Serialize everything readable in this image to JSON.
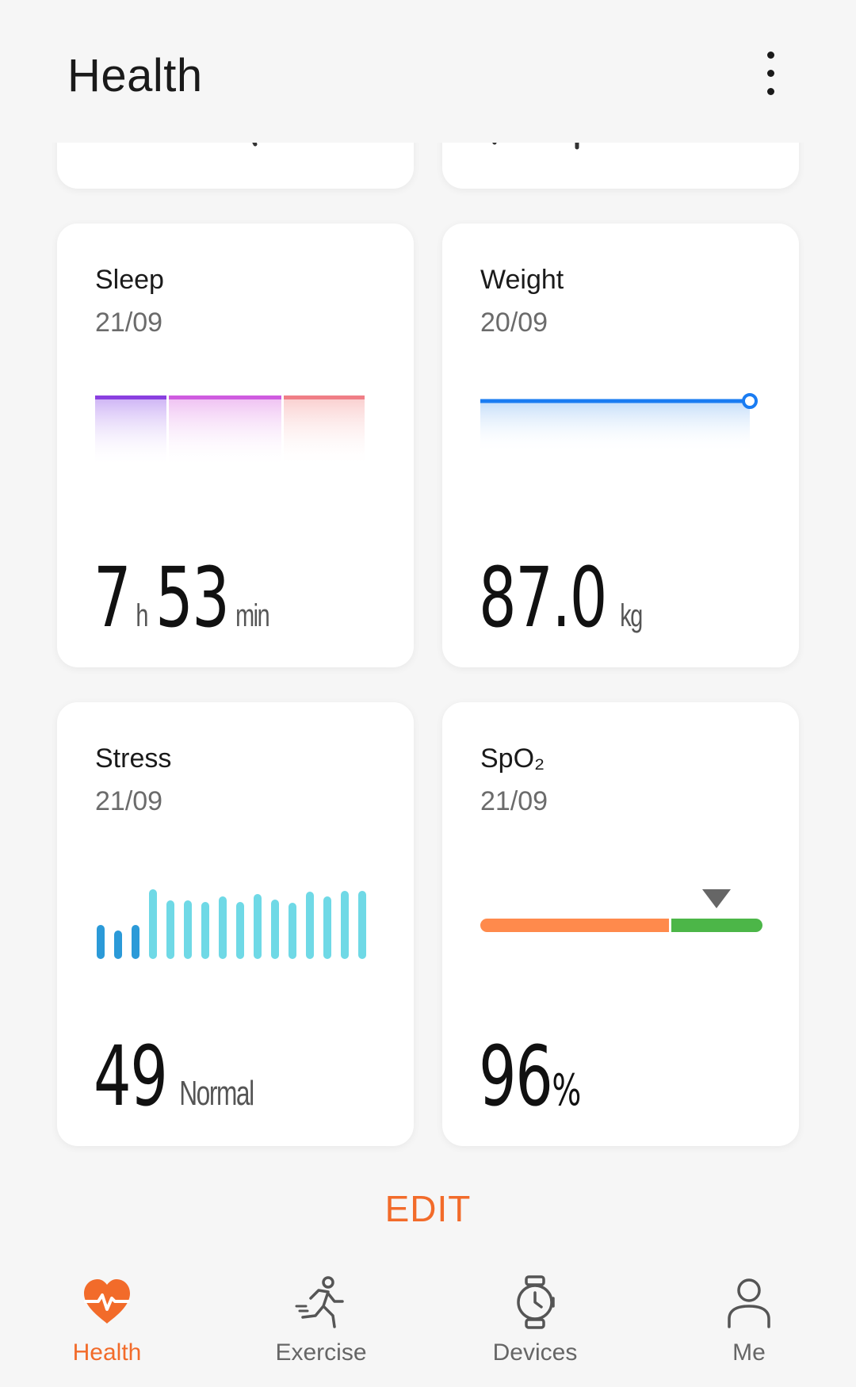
{
  "header": {
    "title": "Health"
  },
  "cards": {
    "sleep": {
      "title": "Sleep",
      "date": "21/09",
      "hours": "7",
      "hours_unit": "h",
      "minutes": "53",
      "minutes_unit": "min"
    },
    "weight": {
      "title": "Weight",
      "date": "20/09",
      "value": "87.0",
      "unit": "kg"
    },
    "stress": {
      "title": "Stress",
      "date": "21/09",
      "value": "49",
      "status": "Normal"
    },
    "spo2": {
      "title": "SpO₂",
      "date": "21/09",
      "value": "96",
      "unit": "%"
    }
  },
  "edit_label": "EDIT",
  "bottom_nav": {
    "items": [
      {
        "label": "Health",
        "icon": "heart-pulse-icon",
        "active": true
      },
      {
        "label": "Exercise",
        "icon": "running-icon",
        "active": false
      },
      {
        "label": "Devices",
        "icon": "watch-icon",
        "active": false
      },
      {
        "label": "Me",
        "icon": "person-icon",
        "active": false
      }
    ]
  },
  "colors": {
    "accent": "#f26b2a",
    "weight_line": "#1a7cf2",
    "stress_light": "#6fd9e6",
    "stress_dark": "#2b9ad8",
    "spo2_low": "#ff8a4c",
    "spo2_normal": "#4cb648"
  }
}
